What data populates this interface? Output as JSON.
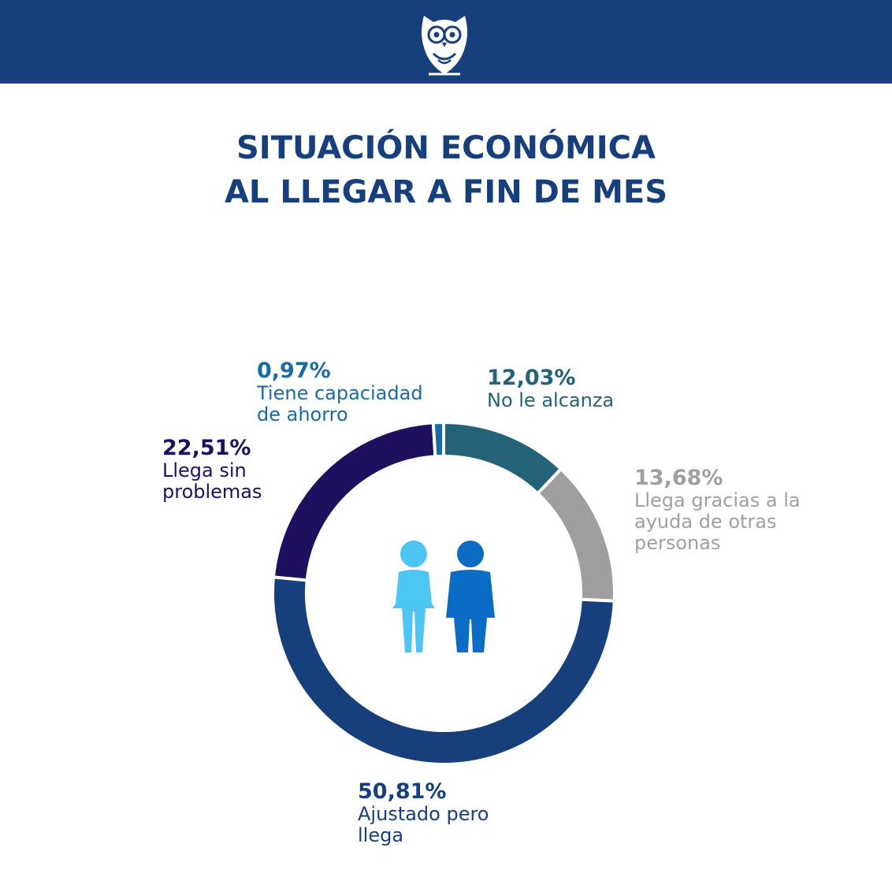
{
  "header": {
    "logo_icon": "owl-icon",
    "bar_color": "#173f7b"
  },
  "title": {
    "line1": "SITUACIÓN ECONÓMICA",
    "line2": "AL LLEGAR A FIN DE MES"
  },
  "chart_data": {
    "type": "pie",
    "donut": true,
    "title": "SITUACIÓN ECONÓMICA AL LLEGAR A FIN DE MES",
    "slices": [
      {
        "label_pct": "12,03%",
        "label_text": "No le alcanza",
        "value": 12.03,
        "color": "#246278"
      },
      {
        "label_pct": "13,68%",
        "label_text": "Llega gracias a la ayuda de otras personas",
        "value": 13.68,
        "color": "#a19f9e"
      },
      {
        "label_pct": "50,81%",
        "label_text": "Ajustado pero llega",
        "value": 50.81,
        "color": "#173f7b"
      },
      {
        "label_pct": "22,51%",
        "label_text": "Llega sin problemas",
        "value": 22.51,
        "color": "#1f0f5e"
      },
      {
        "label_pct": "0,97%",
        "label_text": "Tiene capaciadad de ahorro",
        "value": 0.97,
        "color": "#1a6aa3"
      }
    ],
    "center_icons": [
      "woman-icon",
      "man-icon"
    ],
    "icon_colors": {
      "woman": "#4dc6f4",
      "man": "#0b6cc4"
    },
    "label_colors": {
      "No le alcanza": "#246278",
      "Llega gracias a la ayuda de otras personas": "#a19f9e",
      "Ajustado pero llega": "#173f7b",
      "Llega sin problemas": "#1f0f5e",
      "Tiene capaciadad de ahorro": "#1a6aa3"
    }
  }
}
